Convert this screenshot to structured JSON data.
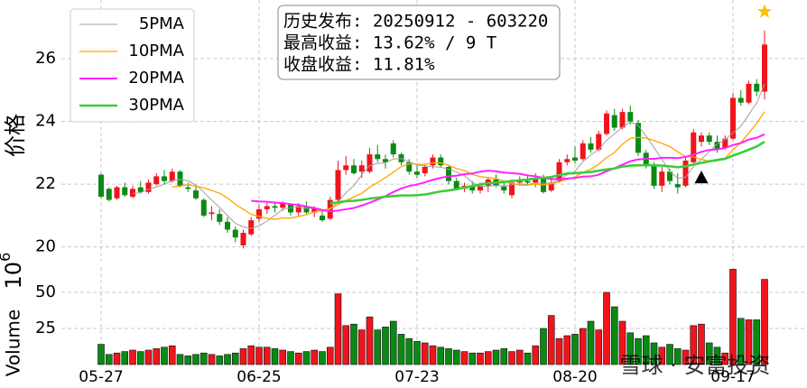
{
  "chart_data": [
    {
      "type": "candlestick",
      "ylabel": "价格",
      "up_color": "#f0141c",
      "down_color": "#0a8a14",
      "open": [
        22.3,
        21.85,
        21.55,
        21.9,
        21.6,
        21.9,
        21.75,
        22.0,
        22.25,
        22.1,
        22.4,
        21.9,
        21.8,
        21.5,
        21.05,
        21.05,
        20.8,
        20.55,
        20.05,
        20.4,
        20.9,
        21.2,
        21.3,
        21.25,
        21.35,
        21.1,
        21.3,
        21.1,
        21.0,
        20.9,
        21.5,
        22.45,
        22.6,
        22.4,
        22.4,
        22.95,
        22.8,
        23.3,
        22.95,
        22.7,
        22.4,
        22.35,
        22.6,
        22.85,
        22.55,
        22.1,
        21.85,
        21.95,
        21.8,
        21.95,
        22.15,
        21.95,
        21.65,
        22.05,
        22.1,
        22.05,
        22.2,
        21.8,
        22.1,
        22.7,
        22.85,
        22.8,
        23.3,
        23.1,
        23.6,
        24.2,
        23.8,
        24.3,
        23.95,
        23.0,
        22.6,
        21.95,
        22.4,
        22.0,
        21.95,
        22.7,
        23.35,
        23.55,
        23.35,
        23.15,
        23.45,
        24.75,
        24.6,
        25.2,
        24.95
      ],
      "high": [
        22.35,
        21.9,
        21.95,
        22.05,
        21.95,
        22.1,
        22.15,
        22.35,
        22.45,
        22.5,
        22.45,
        22.05,
        21.95,
        21.55,
        21.3,
        21.2,
        20.95,
        20.65,
        20.55,
        20.95,
        21.35,
        21.4,
        21.45,
        21.45,
        21.4,
        21.4,
        21.45,
        21.3,
        21.15,
        21.6,
        22.75,
        22.9,
        22.8,
        22.75,
        23.15,
        23.25,
        22.95,
        23.4,
        23.0,
        22.8,
        22.6,
        22.65,
        22.95,
        22.95,
        22.6,
        22.2,
        22.05,
        22.1,
        22.05,
        22.2,
        22.3,
        22.1,
        22.15,
        22.25,
        22.25,
        22.35,
        22.3,
        22.2,
        22.8,
        22.95,
        23.2,
        23.4,
        23.5,
        23.7,
        24.35,
        24.4,
        24.4,
        24.5,
        24.05,
        23.1,
        22.7,
        22.55,
        22.5,
        22.35,
        22.9,
        23.75,
        23.65,
        23.65,
        23.55,
        23.55,
        24.9,
        25.0,
        25.3,
        25.35,
        26.9
      ],
      "low": [
        21.55,
        21.45,
        21.5,
        21.6,
        21.55,
        21.7,
        21.7,
        21.95,
        22.0,
        22.05,
        21.9,
        21.75,
        21.5,
        20.95,
        20.85,
        20.7,
        20.45,
        20.15,
        19.95,
        20.35,
        20.8,
        21.05,
        21.1,
        21.15,
        21.0,
        21.0,
        21.05,
        20.95,
        20.8,
        20.85,
        21.45,
        22.3,
        22.3,
        22.2,
        22.35,
        22.7,
        22.5,
        22.85,
        22.6,
        22.3,
        22.2,
        22.25,
        22.5,
        22.55,
        22.0,
        21.8,
        21.75,
        21.7,
        21.7,
        21.75,
        21.9,
        21.7,
        21.55,
        21.95,
        21.95,
        21.9,
        21.7,
        21.75,
        22.05,
        22.6,
        22.65,
        22.75,
        23.0,
        23.05,
        23.55,
        23.7,
        23.75,
        23.9,
        22.9,
        22.5,
        21.85,
        21.75,
        22.0,
        21.7,
        21.9,
        22.6,
        23.2,
        23.25,
        23.0,
        23.1,
        23.4,
        24.5,
        24.55,
        24.8,
        24.7
      ],
      "close": [
        21.6,
        21.5,
        21.9,
        21.65,
        21.85,
        21.75,
        22.05,
        22.25,
        22.1,
        22.4,
        21.95,
        21.85,
        21.55,
        21.0,
        21.1,
        20.8,
        20.55,
        20.3,
        20.45,
        20.85,
        21.2,
        21.3,
        21.25,
        21.4,
        21.1,
        21.3,
        21.1,
        21.25,
        20.85,
        21.5,
        22.45,
        22.6,
        22.35,
        22.6,
        22.95,
        22.8,
        22.7,
        22.95,
        22.7,
        22.4,
        22.3,
        22.55,
        22.85,
        22.6,
        22.1,
        21.85,
        21.95,
        21.8,
        21.95,
        22.15,
        21.95,
        21.8,
        22.05,
        22.1,
        22.05,
        22.2,
        21.75,
        22.05,
        22.7,
        22.8,
        22.75,
        23.3,
        23.1,
        23.6,
        24.25,
        23.8,
        24.3,
        24.0,
        23.0,
        22.6,
        21.95,
        22.4,
        22.1,
        21.9,
        22.75,
        23.65,
        23.55,
        23.35,
        23.1,
        23.45,
        24.75,
        24.6,
        25.2,
        24.95,
        26.45
      ],
      "series": [
        {
          "name": "5PMA",
          "color": "#a0a0a0",
          "width": 1,
          "values": [
            null,
            null,
            null,
            null,
            21.7,
            21.73,
            21.84,
            21.91,
            22.0,
            22.11,
            22.15,
            22.11,
            21.97,
            21.75,
            21.49,
            21.26,
            21.0,
            20.75,
            20.64,
            20.59,
            20.67,
            20.82,
            21.01,
            21.2,
            21.25,
            21.27,
            21.23,
            21.23,
            21.12,
            21.2,
            21.43,
            21.73,
            21.95,
            22.3,
            22.59,
            22.66,
            22.68,
            22.8,
            22.82,
            22.71,
            22.61,
            22.58,
            22.56,
            22.54,
            22.48,
            22.39,
            22.27,
            22.06,
            21.93,
            21.94,
            21.96,
            21.93,
            21.98,
            22.01,
            21.99,
            22.04,
            22.03,
            22.03,
            22.15,
            22.3,
            22.41,
            22.72,
            22.93,
            23.11,
            23.4,
            23.61,
            23.81,
            23.99,
            23.87,
            23.54,
            23.17,
            22.79,
            22.41,
            22.19,
            22.22,
            22.56,
            22.79,
            23.04,
            23.28,
            23.42,
            23.64,
            23.85,
            24.22,
            24.59,
            25.19
          ]
        },
        {
          "name": "10PMA",
          "color": "#ffa500",
          "width": 1.3,
          "values": [
            null,
            null,
            null,
            null,
            null,
            null,
            null,
            null,
            null,
            21.91,
            21.94,
            21.98,
            21.94,
            21.88,
            21.8,
            21.71,
            21.56,
            21.36,
            21.2,
            21.04,
            20.97,
            20.91,
            20.88,
            20.92,
            20.92,
            20.97,
            21.03,
            21.12,
            21.16,
            21.23,
            21.35,
            21.48,
            21.59,
            21.71,
            21.9,
            22.05,
            22.21,
            22.38,
            22.56,
            22.65,
            22.64,
            22.63,
            22.68,
            22.68,
            22.6,
            22.5,
            22.43,
            22.31,
            22.24,
            22.21,
            22.18,
            22.1,
            22.02,
            21.97,
            21.97,
            22.0,
            21.98,
            22.01,
            22.08,
            22.15,
            22.23,
            22.38,
            22.48,
            22.63,
            22.85,
            23.01,
            23.27,
            23.46,
            23.49,
            23.47,
            23.39,
            23.3,
            23.2,
            23.03,
            22.88,
            22.87,
            22.79,
            22.73,
            22.74,
            22.82,
            23.1,
            23.32,
            23.63,
            23.94,
            24.31
          ]
        },
        {
          "name": "20PMA",
          "color": "#ff22ff",
          "width": 2,
          "values": [
            null,
            null,
            null,
            null,
            null,
            null,
            null,
            null,
            null,
            null,
            null,
            null,
            null,
            null,
            null,
            null,
            null,
            null,
            null,
            21.47,
            21.45,
            21.44,
            21.41,
            21.4,
            21.36,
            21.34,
            21.29,
            21.24,
            21.18,
            21.13,
            21.16,
            21.2,
            21.24,
            21.32,
            21.41,
            21.51,
            21.62,
            21.75,
            21.86,
            21.94,
            21.99,
            22.06,
            22.14,
            22.2,
            22.25,
            22.27,
            22.32,
            22.34,
            22.4,
            22.43,
            22.41,
            22.37,
            22.35,
            22.33,
            22.28,
            22.25,
            22.2,
            22.16,
            22.16,
            22.18,
            22.2,
            22.24,
            22.25,
            22.3,
            22.41,
            22.51,
            22.62,
            22.73,
            22.79,
            22.81,
            22.81,
            22.84,
            22.84,
            22.83,
            22.87,
            22.94,
            23.03,
            23.09,
            23.11,
            23.15,
            23.25,
            23.31,
            23.42,
            23.48,
            23.59
          ]
        },
        {
          "name": "30PMA",
          "color": "#3ccc3c",
          "width": 2.6,
          "values": [
            null,
            null,
            null,
            null,
            null,
            null,
            null,
            null,
            null,
            null,
            null,
            null,
            null,
            null,
            null,
            null,
            null,
            null,
            null,
            null,
            null,
            null,
            null,
            null,
            null,
            null,
            null,
            null,
            null,
            21.39,
            21.42,
            21.46,
            21.47,
            21.5,
            21.54,
            21.57,
            21.6,
            21.62,
            21.64,
            21.64,
            21.65,
            21.67,
            21.72,
            21.77,
            21.8,
            21.84,
            21.89,
            21.94,
            21.99,
            22.03,
            22.05,
            22.07,
            22.1,
            22.12,
            22.15,
            22.18,
            22.2,
            22.23,
            22.29,
            22.34,
            22.35,
            22.37,
            22.39,
            22.43,
            22.47,
            22.5,
            22.56,
            22.59,
            22.6,
            22.61,
            22.6,
            22.59,
            22.57,
            22.54,
            22.57,
            22.63,
            22.68,
            22.73,
            22.77,
            22.81,
            22.91,
            23.0,
            23.1,
            23.2,
            23.35
          ]
        }
      ],
      "markers": [
        {
          "symbol": "star",
          "color": "#ffc000",
          "index": 84,
          "value": 27.5
        },
        {
          "symbol": "triangle",
          "color": "#000000",
          "index": 76,
          "value": 22.2
        }
      ],
      "annotation": [
        "历史发布: 20250912 - 603220",
        "最高收益: 13.62% / 9 T",
        "收盘收益: 11.81%"
      ],
      "ylim": [
        19.53,
        27.87
      ],
      "yticks": [
        20,
        22,
        24,
        26
      ],
      "grid": true,
      "legend": "upper left"
    },
    {
      "type": "bar",
      "ylabel": "Volume",
      "scale_label": {
        "base": "10",
        "exponent": "6"
      },
      "categories": [
        "05-27",
        null,
        null,
        null,
        null,
        null,
        null,
        null,
        null,
        null,
        null,
        null,
        null,
        null,
        null,
        null,
        null,
        null,
        null,
        null,
        "06-25",
        null,
        null,
        null,
        null,
        null,
        null,
        null,
        null,
        null,
        null,
        null,
        null,
        null,
        null,
        null,
        null,
        null,
        null,
        null,
        "07-23",
        null,
        null,
        null,
        null,
        null,
        null,
        null,
        null,
        null,
        null,
        null,
        null,
        null,
        null,
        null,
        null,
        null,
        null,
        null,
        "08-20",
        null,
        null,
        null,
        null,
        null,
        null,
        null,
        null,
        null,
        null,
        null,
        null,
        null,
        null,
        null,
        null,
        null,
        null,
        null,
        "09-17",
        null,
        null,
        null,
        null
      ],
      "values": [
        14,
        7,
        8,
        9,
        10,
        9,
        10,
        11,
        12,
        13,
        7,
        6,
        7,
        8,
        7,
        6,
        7,
        8,
        11,
        13,
        12,
        12,
        11,
        10,
        9,
        8,
        9,
        10,
        9,
        12,
        49,
        27,
        28,
        24,
        33,
        24,
        26,
        30,
        21,
        18,
        16,
        15,
        13,
        12,
        11,
        10,
        9,
        8,
        8,
        9,
        10,
        11,
        9,
        10,
        8,
        13,
        25,
        34,
        18,
        20,
        21,
        25,
        30,
        24,
        50,
        40,
        30,
        22,
        18,
        20,
        15,
        12,
        14,
        11,
        10,
        27,
        28,
        15,
        12,
        8,
        66,
        32,
        31,
        31,
        59
      ],
      "ylim": [
        0,
        67.5
      ],
      "yticks": [
        25,
        50
      ],
      "grid": true,
      "watermark": "雪球 · 安富投资"
    }
  ]
}
